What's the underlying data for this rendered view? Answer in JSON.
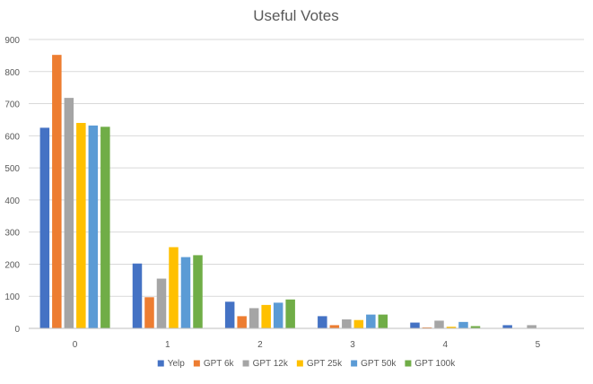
{
  "chart_data": {
    "type": "bar",
    "title": "Useful Votes",
    "xlabel": "",
    "ylabel": "",
    "categories": [
      "0",
      "1",
      "2",
      "3",
      "4",
      "5"
    ],
    "ylim": [
      0,
      900
    ],
    "yticks": [
      0,
      100,
      200,
      300,
      400,
      500,
      600,
      700,
      800,
      900
    ],
    "grid": true,
    "legend_position": "bottom",
    "series": [
      {
        "name": "Yelp",
        "color": "#4472C4",
        "values": [
          625,
          202,
          83,
          38,
          18,
          10
        ]
      },
      {
        "name": "GPT 6k",
        "color": "#ED7D31",
        "values": [
          852,
          97,
          38,
          10,
          3,
          0
        ]
      },
      {
        "name": "GPT 12k",
        "color": "#A5A5A5",
        "values": [
          718,
          155,
          63,
          28,
          24,
          10
        ]
      },
      {
        "name": "GPT 25k",
        "color": "#FFC000",
        "values": [
          640,
          253,
          73,
          26,
          5,
          0
        ]
      },
      {
        "name": "GPT 50k",
        "color": "#5B9BD5",
        "values": [
          632,
          222,
          80,
          43,
          20,
          0
        ]
      },
      {
        "name": "GPT 100k",
        "color": "#70AD47",
        "values": [
          628,
          228,
          90,
          43,
          7,
          0
        ]
      }
    ]
  }
}
